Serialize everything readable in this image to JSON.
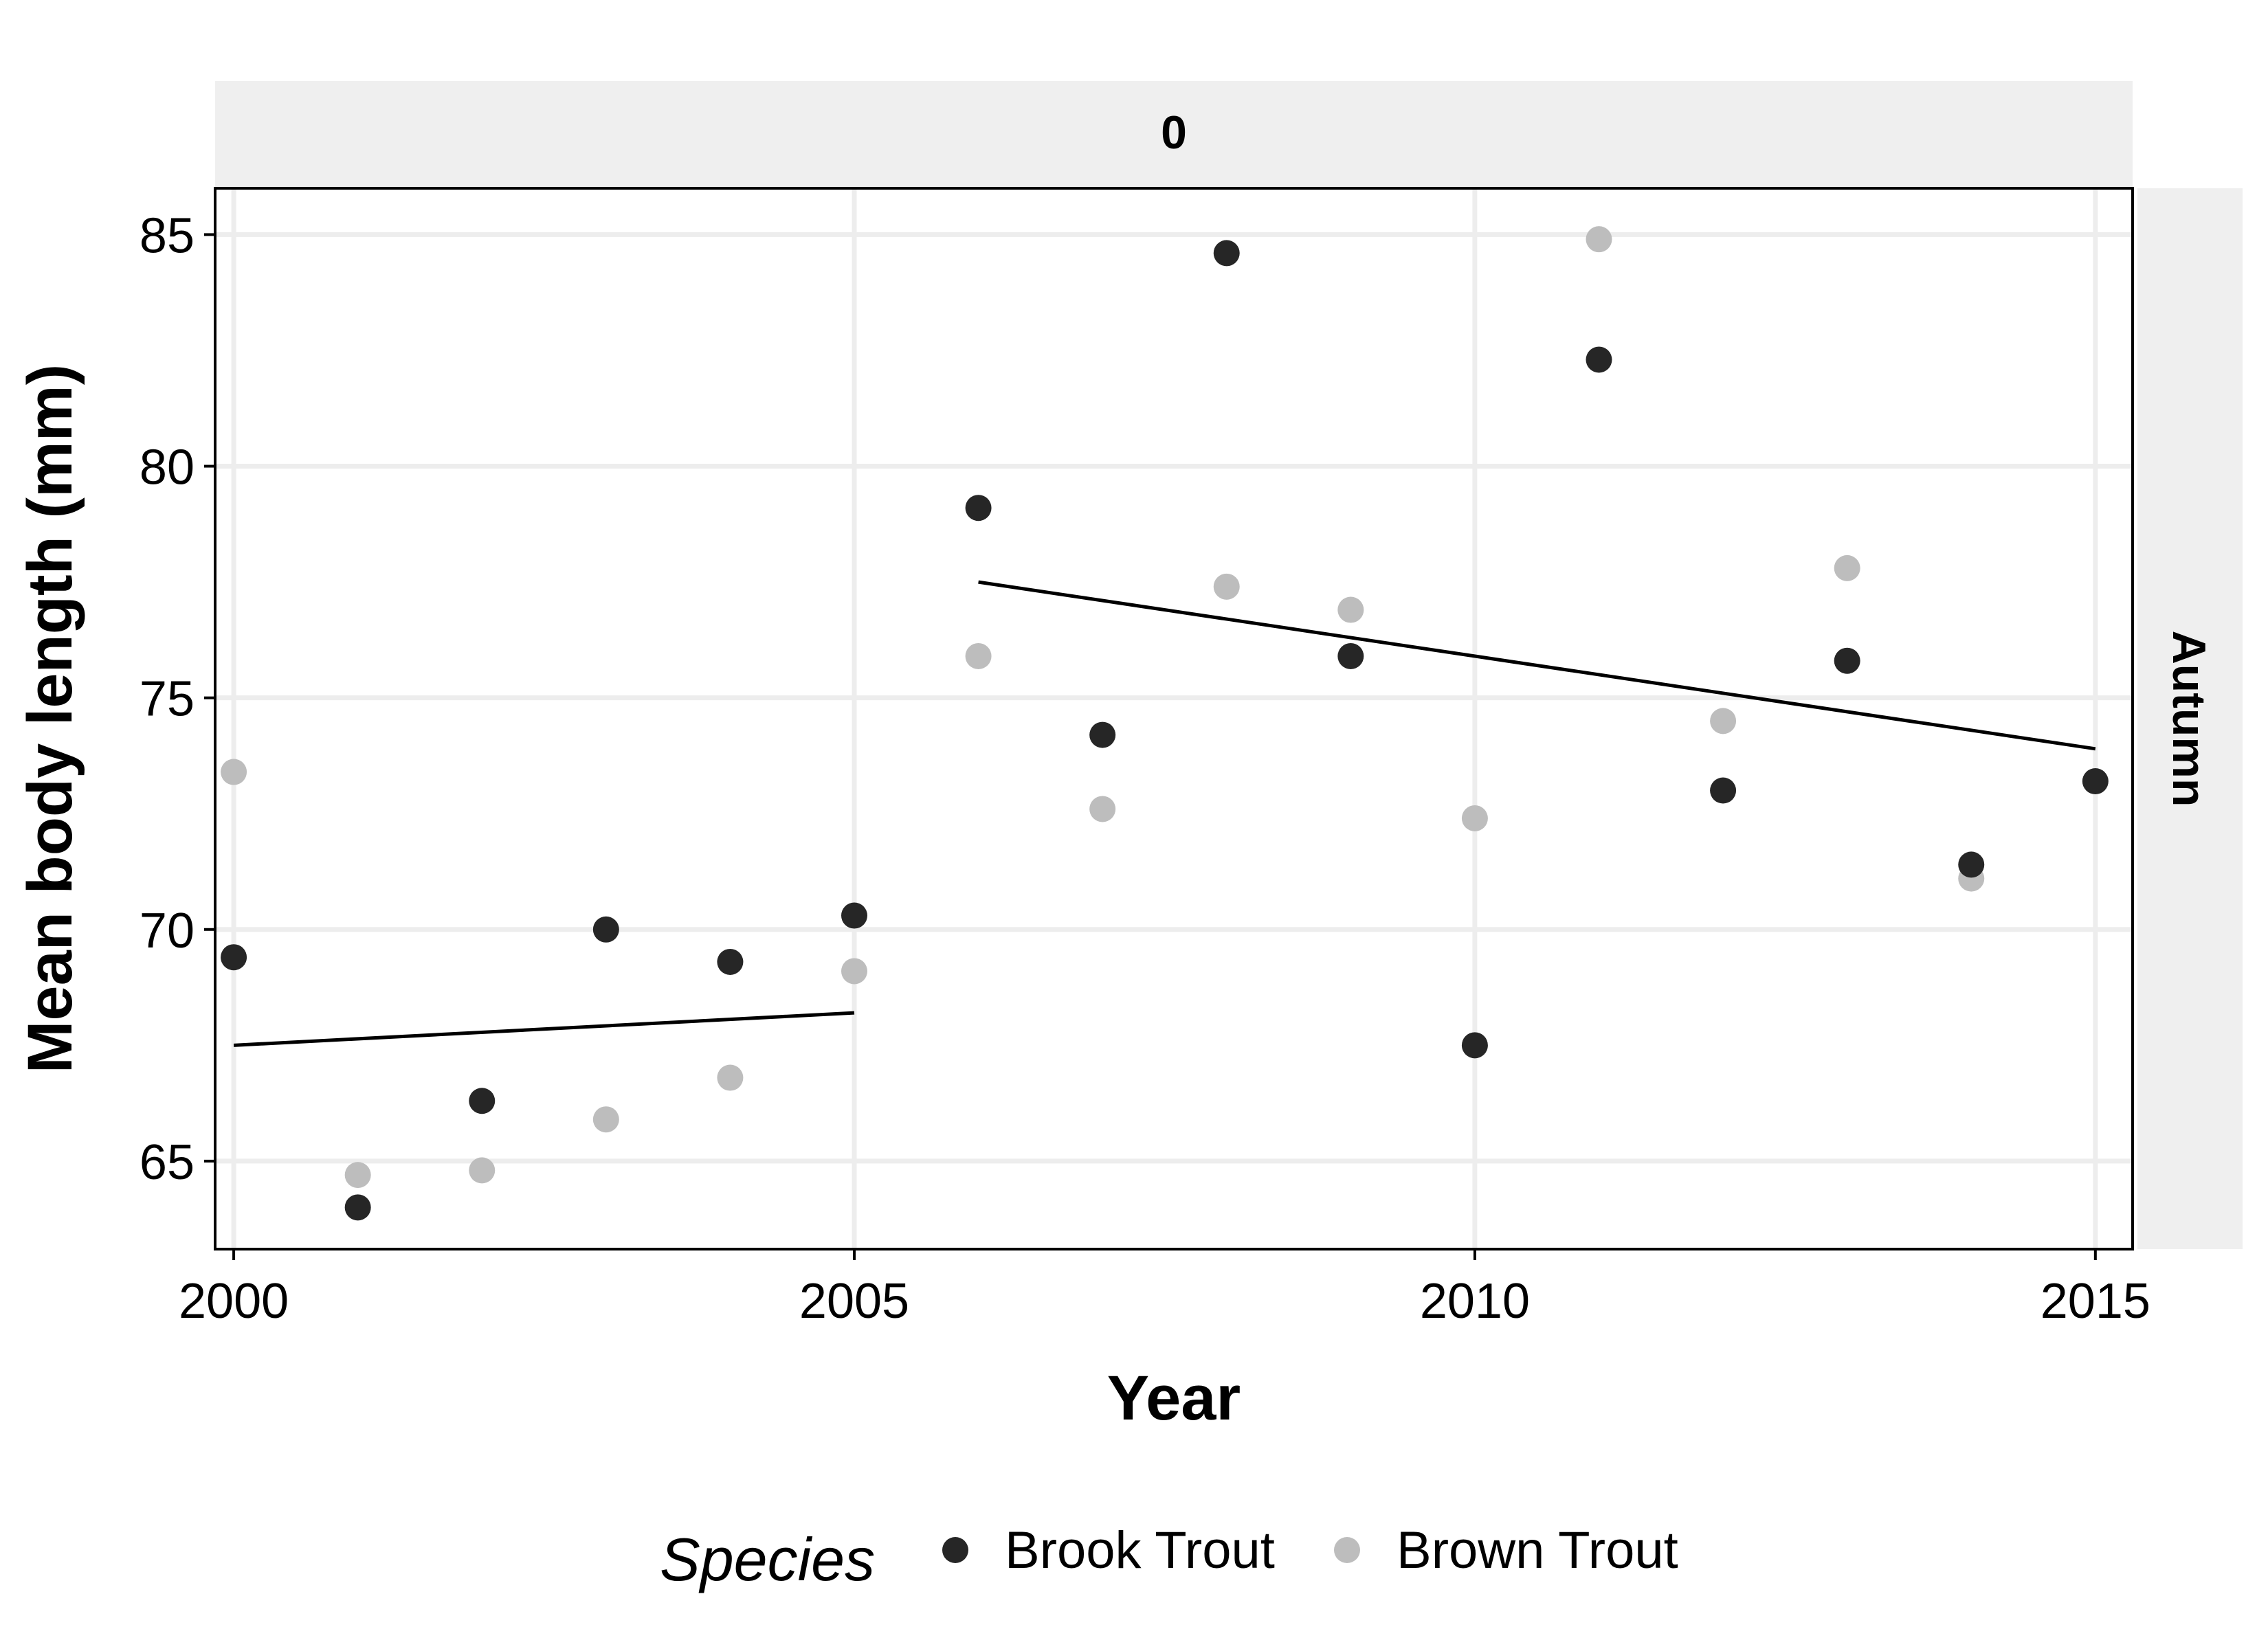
{
  "chart_data": {
    "type": "scatter",
    "facet_top_label": "0",
    "facet_right_label": "Autumn",
    "xlabel": "Year",
    "ylabel": "Mean body length (mm)",
    "xlim": [
      1999.85,
      2015.3
    ],
    "ylim": [
      63.1,
      86.0
    ],
    "x_ticks": [
      2000,
      2005,
      2010,
      2015
    ],
    "y_ticks": [
      65,
      70,
      75,
      80,
      85
    ],
    "grid": true,
    "legend": {
      "title": "Species",
      "position": "bottom",
      "entries": [
        "Brook Trout",
        "Brown Trout"
      ]
    },
    "colors": {
      "Brook Trout": "#262626",
      "Brown Trout": "#bdbdbd",
      "trend": "#000000",
      "strip": "#efefef",
      "grid": "#ededed"
    },
    "series": [
      {
        "name": "Brook Trout",
        "points": [
          {
            "x": 2000,
            "y": 69.4
          },
          {
            "x": 2001,
            "y": 64.0
          },
          {
            "x": 2002,
            "y": 66.3
          },
          {
            "x": 2003,
            "y": 70.0
          },
          {
            "x": 2004,
            "y": 69.3
          },
          {
            "x": 2005,
            "y": 70.3
          },
          {
            "x": 2006,
            "y": 79.1
          },
          {
            "x": 2007,
            "y": 74.2
          },
          {
            "x": 2008,
            "y": 84.6
          },
          {
            "x": 2009,
            "y": 75.9
          },
          {
            "x": 2010,
            "y": 67.5
          },
          {
            "x": 2011,
            "y": 82.3
          },
          {
            "x": 2012,
            "y": 73.0
          },
          {
            "x": 2013,
            "y": 75.8
          },
          {
            "x": 2014,
            "y": 71.4
          },
          {
            "x": 2015,
            "y": 73.2
          }
        ]
      },
      {
        "name": "Brown Trout",
        "points": [
          {
            "x": 2000,
            "y": 73.4
          },
          {
            "x": 2001,
            "y": 64.7
          },
          {
            "x": 2002,
            "y": 64.8
          },
          {
            "x": 2003,
            "y": 65.9
          },
          {
            "x": 2004,
            "y": 66.8
          },
          {
            "x": 2005,
            "y": 69.1
          },
          {
            "x": 2006,
            "y": 75.9
          },
          {
            "x": 2007,
            "y": 72.6
          },
          {
            "x": 2008,
            "y": 77.4
          },
          {
            "x": 2009,
            "y": 76.9
          },
          {
            "x": 2010,
            "y": 72.4
          },
          {
            "x": 2011,
            "y": 84.9
          },
          {
            "x": 2012,
            "y": 74.5
          },
          {
            "x": 2013,
            "y": 77.8
          },
          {
            "x": 2014,
            "y": 71.1
          }
        ]
      }
    ],
    "trend_lines": [
      {
        "x": [
          2000,
          2005
        ],
        "y": [
          67.5,
          68.2
        ]
      },
      {
        "x": [
          2006,
          2015
        ],
        "y": [
          77.5,
          73.9
        ]
      }
    ]
  }
}
